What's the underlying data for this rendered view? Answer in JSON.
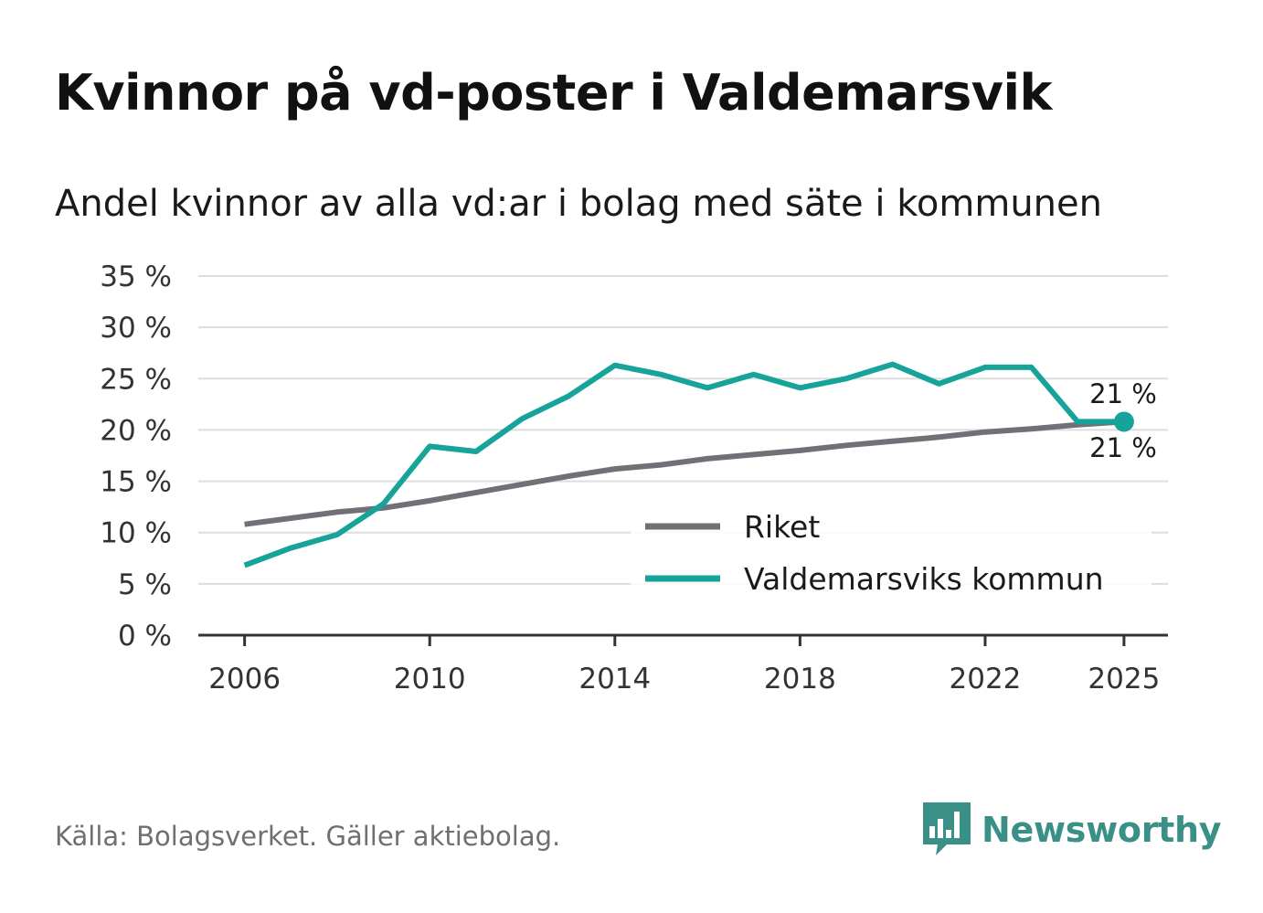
{
  "header": {
    "title": "Kvinnor på vd-poster i Valdemarsvik",
    "subtitle": "Andel kvinnor av alla vd:ar i bolag med säte i kommunen"
  },
  "footer": {
    "source": "Källa: Bolagsverket. Gäller aktiebolag.",
    "brand": "Newsworthy"
  },
  "colors": {
    "riket": "#717076",
    "kommun": "#16a39a",
    "grid": "#dddddd",
    "axis": "#333333",
    "brand": "#3a8f87"
  },
  "chart_data": {
    "type": "line",
    "title": "Kvinnor på vd-poster i Valdemarsvik",
    "subtitle": "Andel kvinnor av alla vd:ar i bolag med säte i kommunen",
    "xlabel": "",
    "ylabel": "",
    "x": [
      2006,
      2007,
      2008,
      2009,
      2010,
      2011,
      2012,
      2013,
      2014,
      2015,
      2016,
      2017,
      2018,
      2019,
      2020,
      2021,
      2022,
      2023,
      2024,
      2025
    ],
    "xlim": [
      2005,
      2025.95
    ],
    "ylim": [
      0,
      35
    ],
    "xticks": [
      2006,
      2010,
      2014,
      2018,
      2022,
      2025
    ],
    "xtick_labels": [
      "2006",
      "2010",
      "2014",
      "2018",
      "2022",
      "2025"
    ],
    "yticks": [
      0,
      5,
      10,
      15,
      20,
      25,
      30,
      35
    ],
    "ytick_labels": [
      "0 %",
      "5 %",
      "10 %",
      "15 %",
      "20 %",
      "25 %",
      "30 %",
      "35 %"
    ],
    "grid": true,
    "legend_position": "bottom-right",
    "series": [
      {
        "name": "Riket",
        "color": "#717076",
        "values": [
          10.8,
          11.4,
          12.0,
          12.4,
          13.1,
          13.9,
          14.7,
          15.5,
          16.2,
          16.6,
          17.2,
          17.6,
          18.0,
          18.5,
          18.9,
          19.3,
          19.8,
          20.1,
          20.5,
          20.8
        ],
        "end_label": "21 %"
      },
      {
        "name": "Valdemarsviks kommun",
        "color": "#16a39a",
        "values": [
          6.8,
          8.5,
          9.8,
          12.8,
          18.4,
          17.9,
          21.1,
          23.3,
          26.3,
          25.4,
          24.1,
          25.4,
          24.1,
          25.0,
          26.4,
          24.5,
          26.1,
          26.1,
          20.8,
          20.8
        ],
        "end_label": "21 %"
      }
    ]
  }
}
